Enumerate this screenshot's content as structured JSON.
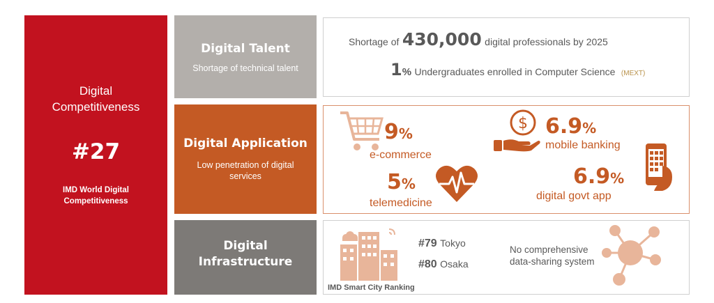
{
  "left": {
    "title_line1": "Digital",
    "title_line2": "Competitiveness",
    "rank": "#27",
    "source_line1": "IMD World Digital",
    "source_line2": "Competitiveness"
  },
  "talent": {
    "heading": "Digital Talent",
    "sub": "Shortage of technical talent",
    "stat1_prefix": "Shortage of",
    "stat1_value": "430,000",
    "stat1_suffix": "digital professionals by 2025",
    "stat2_value": "1",
    "stat2_pct": "%",
    "stat2_text": "Undergraduates enrolled in Computer Science",
    "stat2_source": "(MEXT)"
  },
  "application": {
    "heading": "Digital Application",
    "sub_line1": "Low penetration of digital",
    "sub_line2": "services",
    "ecommerce_value": "9",
    "ecommerce_label": "e-commerce",
    "banking_value": "6.9",
    "banking_label": "mobile banking",
    "telemed_value": "5",
    "telemed_label": "telemedicine",
    "govt_value": "6.9",
    "govt_label": "digital govt app",
    "pct": "%"
  },
  "infrastructure": {
    "heading_line1": "Digital",
    "heading_line2": "Infrastructure",
    "tokyo_rank": "#79",
    "tokyo_city": "Tokyo",
    "osaka_rank": "#80",
    "osaka_city": "Osaka",
    "ranking_label": "IMD Smart City Ranking",
    "datashare_line1": "No comprehensive",
    "datashare_line2": "data-sharing system"
  },
  "colors": {
    "red": "#c2121f",
    "orange": "#c45a24",
    "gray_light": "#b3afab",
    "gray_dark": "#7d7a77",
    "peach": "#e8b59a"
  }
}
